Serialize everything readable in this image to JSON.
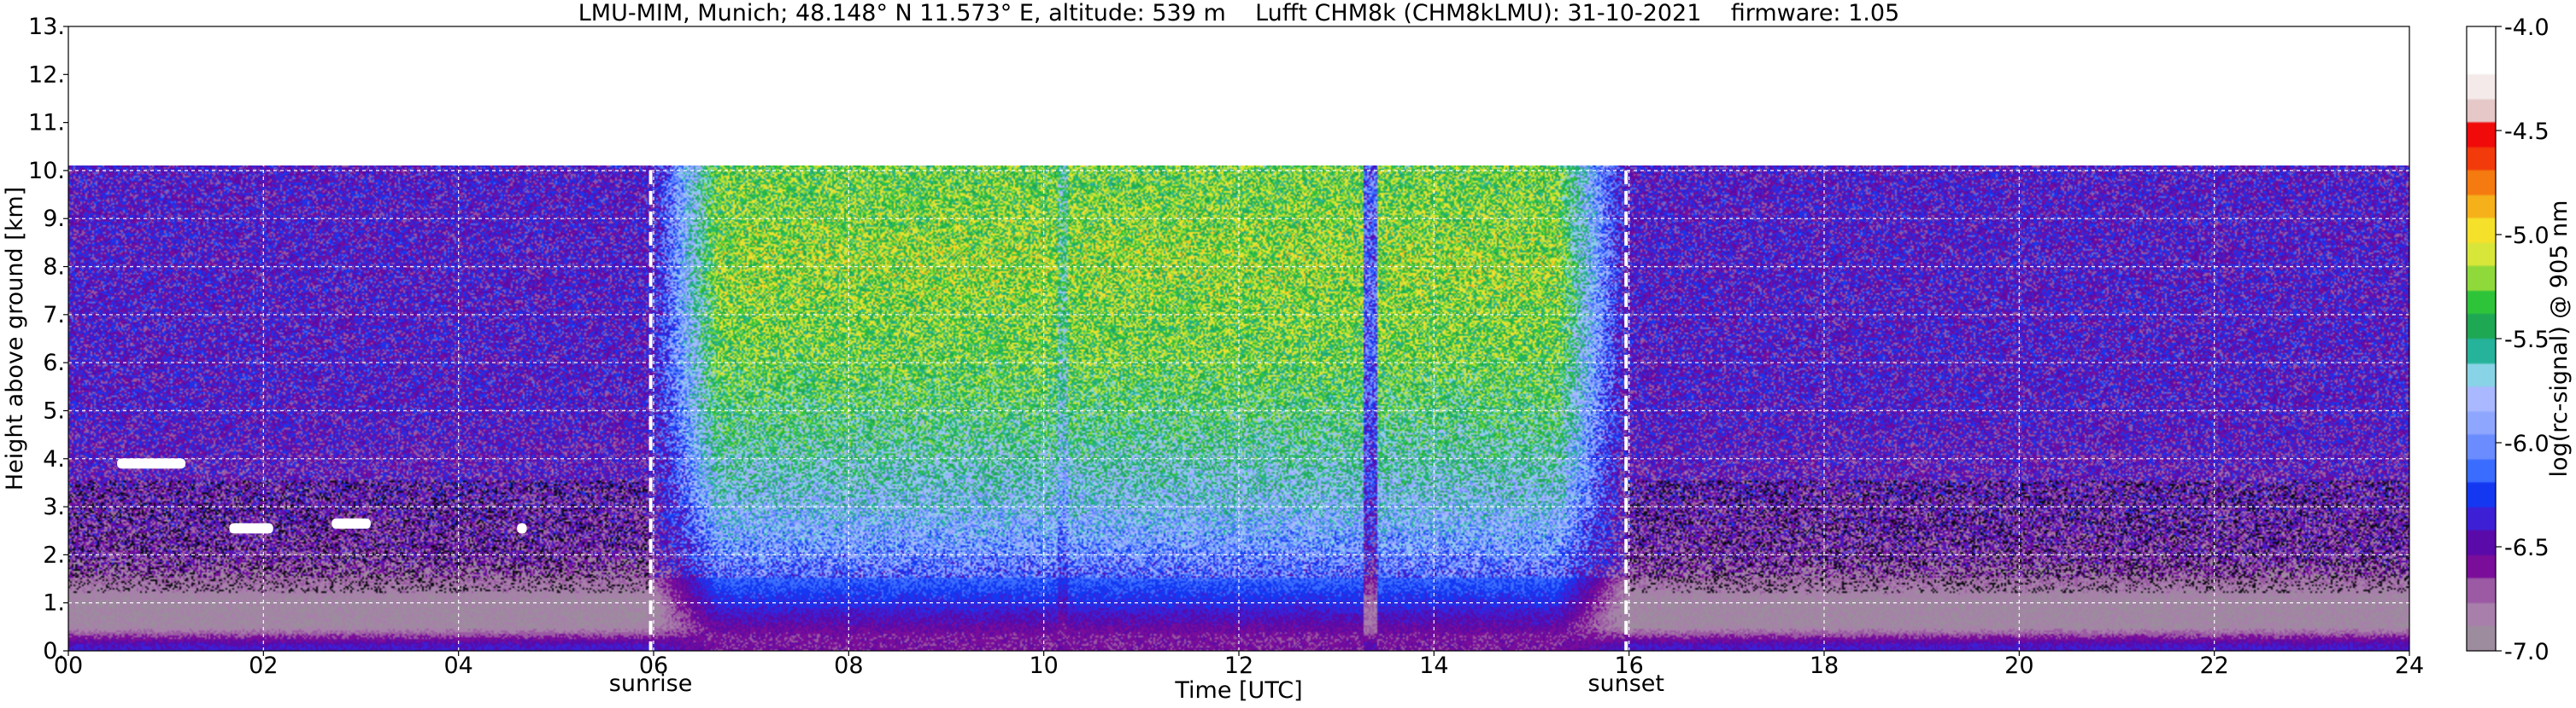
{
  "chart_data": {
    "type": "heatmap",
    "title": "LMU-MIM, Munich; 48.148° N 11.573° E, altitude: 539 m    Lufft CHM8k (CHM8kLMU): 31-10-2021    firmware: 1.05",
    "xlabel": "Time [UTC]",
    "ylabel": "Height above ground [km]",
    "colorbar_label": "log(rc-signal) @ 905 nm",
    "xlim": [
      0,
      24
    ],
    "ylim": [
      0,
      13
    ],
    "zlim": [
      -7.0,
      -4.0
    ],
    "data_top_km": 10,
    "x_ticks": [
      0,
      2,
      4,
      6,
      8,
      10,
      12,
      14,
      16,
      18,
      20,
      22,
      24
    ],
    "x_tick_labels": [
      "00",
      "02",
      "04",
      "06",
      "08",
      "10",
      "12",
      "14",
      "16",
      "18",
      "20",
      "22",
      "24"
    ],
    "y_ticks": [
      0,
      1,
      2,
      3,
      4,
      5,
      6,
      7,
      8,
      9,
      10,
      11,
      12,
      13
    ],
    "y_tick_labels": [
      "0.",
      "1.",
      "2.",
      "3.",
      "4.",
      "5.",
      "6.",
      "7.",
      "8.",
      "9.",
      "10.",
      "11.",
      "12.",
      "13."
    ],
    "colorbar_ticks": [
      -7.0,
      -6.5,
      -6.0,
      -5.5,
      -5.0,
      -4.5,
      -4.0
    ],
    "colorbar_tick_labels": [
      "-7.0",
      "-6.5",
      "-6.0",
      "-5.5",
      "-5.0",
      "-4.5",
      "-4.0"
    ],
    "grid": true,
    "events": [
      {
        "label": "sunrise",
        "time": 5.97
      },
      {
        "label": "sunset",
        "time": 15.97
      }
    ],
    "approx_profile": {
      "night": [
        {
          "height_km": 0.1,
          "value": -6.4
        },
        {
          "height_km": 0.5,
          "value": -6.9
        },
        {
          "height_km": 1.0,
          "value": -6.9
        },
        {
          "height_km": 2.0,
          "value": -6.6
        },
        {
          "height_km": 5.0,
          "value": -6.45
        },
        {
          "height_km": 10.0,
          "value": -6.45
        }
      ],
      "day": [
        {
          "height_km": 0.3,
          "value": -6.6
        },
        {
          "height_km": 1.0,
          "value": -6.3
        },
        {
          "height_km": 2.0,
          "value": -6.0
        },
        {
          "height_km": 3.0,
          "value": -5.75
        },
        {
          "height_km": 4.5,
          "value": -5.5
        },
        {
          "height_km": 6.0,
          "value": -5.3
        },
        {
          "height_km": 8.0,
          "value": -5.2
        },
        {
          "height_km": 10.0,
          "value": -5.3
        }
      ]
    },
    "clouds": [
      {
        "time_start": 0.5,
        "time_end": 1.2,
        "height_km": 3.9
      },
      {
        "time_start": 1.65,
        "time_end": 2.1,
        "height_km": 2.55
      },
      {
        "time_start": 2.7,
        "time_end": 3.1,
        "height_km": 2.65
      },
      {
        "time_start": 4.6,
        "time_end": 4.7,
        "height_km": 2.55
      }
    ]
  },
  "colors": {
    "colormap": [
      "#9d8c9e",
      "#a87fab",
      "#9b5aa3",
      "#7a0d9a",
      "#5a0aa8",
      "#3d1fd6",
      "#1438f2",
      "#3a6cff",
      "#6a8cff",
      "#8fa6ff",
      "#a9b8ff",
      "#88d4e6",
      "#26b39b",
      "#1ea854",
      "#2ec43a",
      "#8fd93a",
      "#d8e63a",
      "#f5e02a",
      "#f5b01a",
      "#f57a10",
      "#f23a0a",
      "#f00a0a",
      "#e6c8c8",
      "#f5eaea",
      "#ffffff",
      "#ffffff"
    ],
    "event_line": "#ffffff",
    "grid": "#ffffff"
  }
}
